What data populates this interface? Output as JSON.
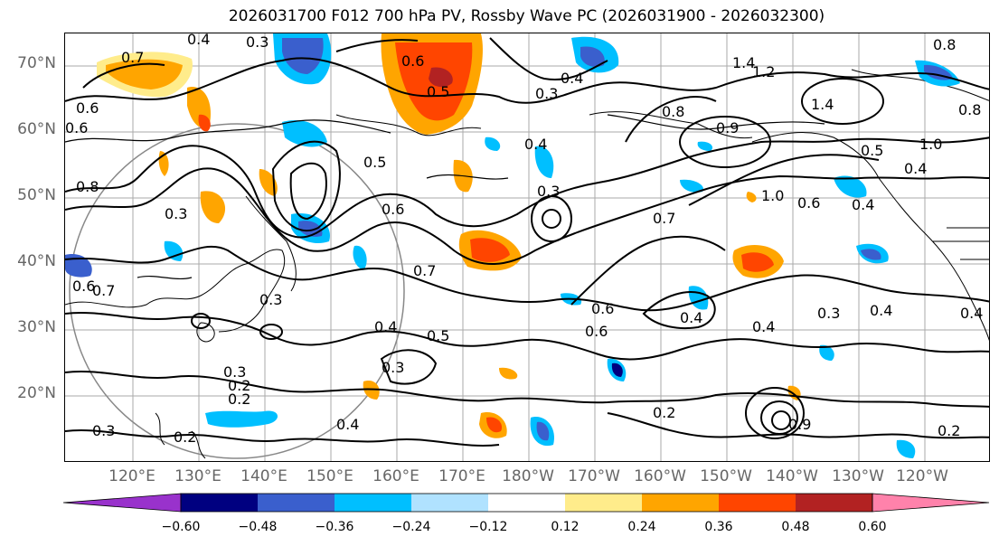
{
  "title": "2026031700 F012 700 hPa PV, Rossby Wave PC (2026031900 - 2026032300)",
  "lat_labels": [
    "70°N",
    "60°N",
    "50°N",
    "40°N",
    "30°N",
    "20°N"
  ],
  "lon_labels": [
    "120°E",
    "130°E",
    "140°E",
    "150°E",
    "160°E",
    "170°E",
    "180°W",
    "170°W",
    "160°W",
    "150°W",
    "140°W",
    "130°W",
    "120°W"
  ],
  "colorbar": {
    "ticks": [
      "−0.60",
      "−0.48",
      "−0.36",
      "−0.24",
      "−0.12",
      "0.12",
      "0.24",
      "0.36",
      "0.48",
      "0.60"
    ],
    "colors": [
      "#9932cc",
      "#000080",
      "#3a5fcd",
      "#00bfff",
      "#b0e2ff",
      "#ffffff",
      "#ffec8b",
      "#ffa500",
      "#ff4500",
      "#b22222",
      "#ff82ab"
    ]
  },
  "contour_labels": [
    "0.4",
    "0.3",
    "0.7",
    "0.5",
    "0.6",
    "0.6",
    "0.4",
    "0.3",
    "1.4",
    "1.2",
    "0.8",
    "1.4",
    "0.8",
    "0.8",
    "0.9",
    "0.5",
    "1.0",
    "0.4",
    "0.5",
    "0.6",
    "0.4",
    "0.3",
    "0.7",
    "1.0",
    "0.6",
    "0.8",
    "0.3",
    "0.4",
    "0.6",
    "0.7",
    "0.6",
    "0.3",
    "0.4",
    "0.5",
    "0.3",
    "0.3",
    "0.4",
    "0.2",
    "0.2",
    "0.3",
    "0.2",
    "0.4",
    "0.6",
    "0.9",
    "0.2",
    "0.4",
    "0.3",
    "0.4",
    "0.4",
    "0.2",
    "0.6",
    "0.7"
  ]
}
